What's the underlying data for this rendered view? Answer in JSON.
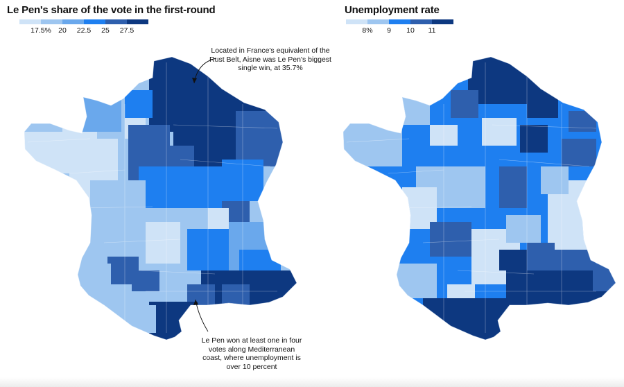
{
  "left": {
    "title": "Le Pen's share of the vote in the first-round",
    "legend": {
      "ticks": [
        "17.5%",
        "20",
        "22.5",
        "25",
        "27.5"
      ],
      "colors": [
        "#cfe3f7",
        "#9ec6f0",
        "#6aa8ec",
        "#1e7ff0",
        "#2e5fad",
        "#0d3880"
      ]
    },
    "annotations": [
      "Located in France's equivalent of the Rust Belt, Aisne was Le Pen's biggest single win, at 35.7%",
      "Le Pen won at least one in four votes along Mediterranean coast, where unemployment is over 10 percent"
    ]
  },
  "right": {
    "title": "Unemployment rate",
    "legend": {
      "ticks": [
        "8%",
        "9",
        "10",
        "11"
      ],
      "colors": [
        "#cfe3f7",
        "#9ec6f0",
        "#1e7ff0",
        "#2e5fad",
        "#0d3880"
      ]
    }
  }
}
